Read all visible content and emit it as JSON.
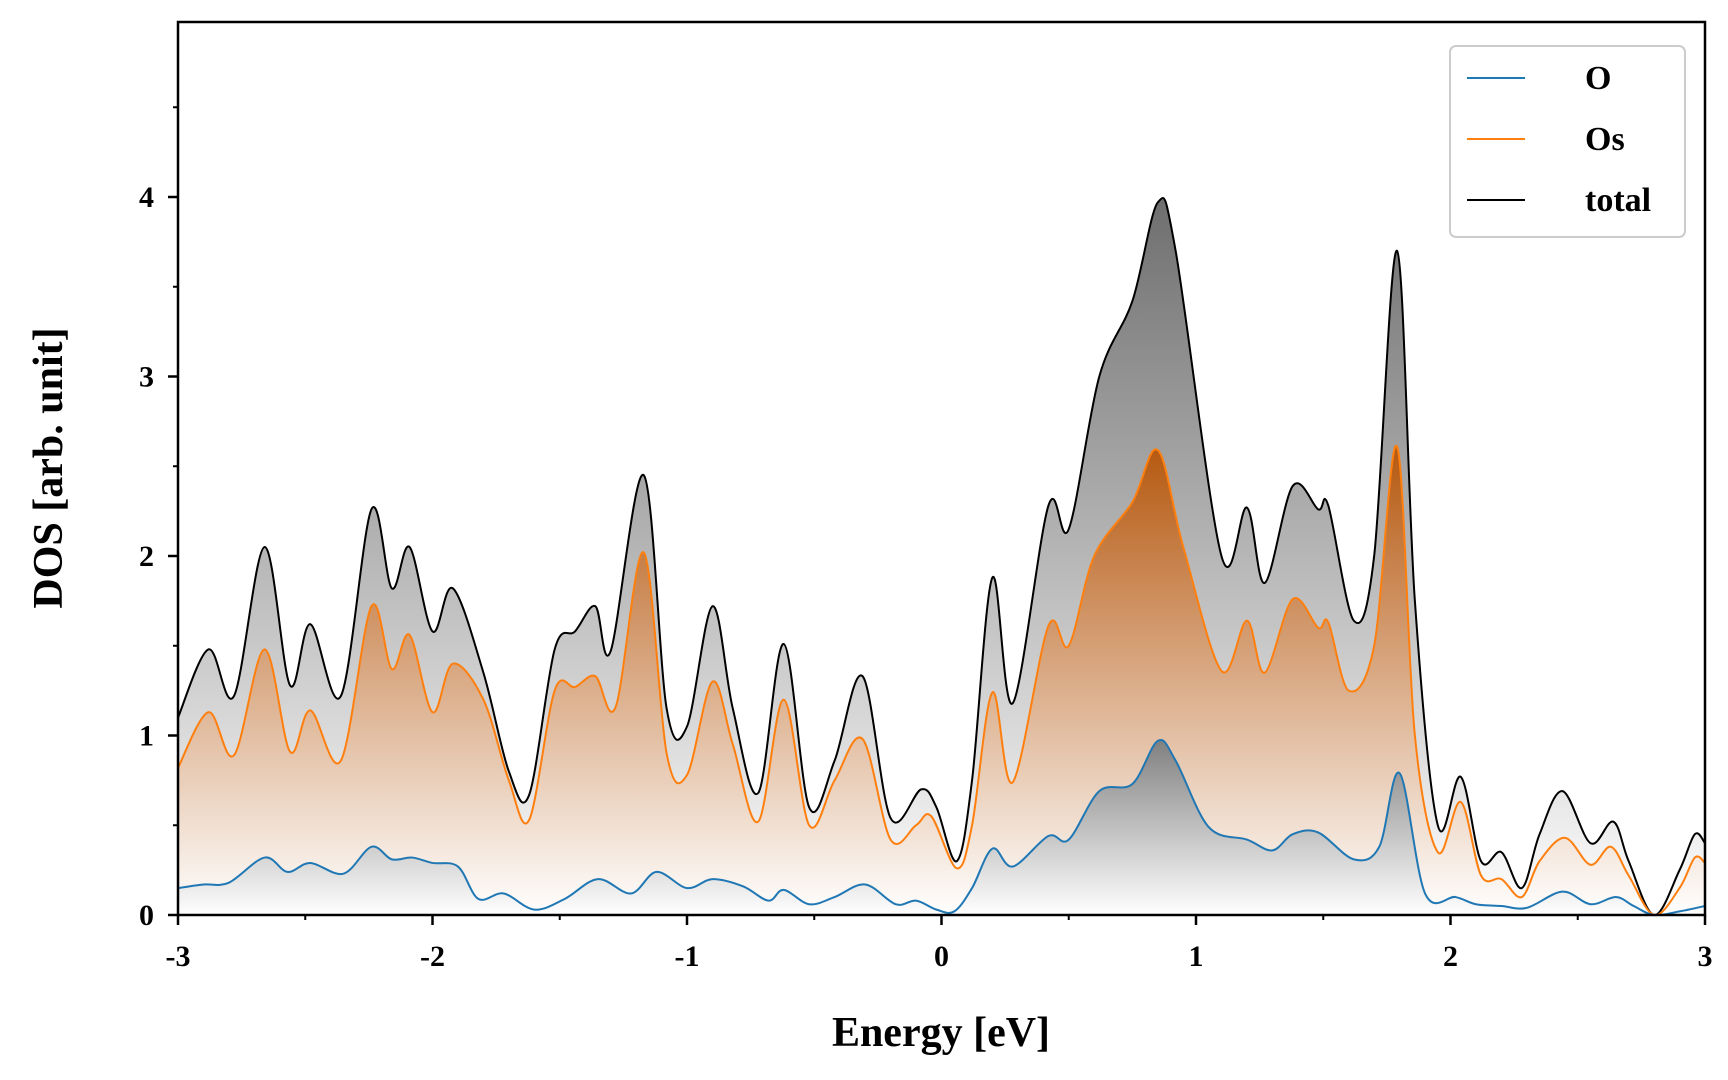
{
  "chart_data": {
    "type": "area",
    "title": "",
    "xlabel": "Energy [eV]",
    "ylabel": "DOS [arb. unit]",
    "xlim": [
      -3,
      3
    ],
    "ylim": [
      0,
      5
    ],
    "xticks": [
      -3,
      -2,
      -1,
      0,
      1,
      2,
      3
    ],
    "xtick_labels": [
      "-3",
      "-2",
      "-1",
      "0",
      "1",
      "2",
      "3"
    ],
    "yticks": [
      0,
      1,
      2,
      3,
      4
    ],
    "ytick_labels": [
      "0",
      "1",
      "2",
      "3",
      "4"
    ],
    "grid": false,
    "legend_position": "top-right",
    "series": [
      {
        "name": "O",
        "color": "#1f77b4",
        "fill_color": "#808080",
        "x": [
          -3.0,
          -2.9,
          -2.8,
          -2.66,
          -2.57,
          -2.48,
          -2.35,
          -2.24,
          -2.16,
          -2.08,
          -2.0,
          -1.9,
          -1.82,
          -1.72,
          -1.6,
          -1.48,
          -1.35,
          -1.22,
          -1.12,
          -1.0,
          -0.9,
          -0.78,
          -0.68,
          -0.62,
          -0.52,
          -0.42,
          -0.3,
          -0.18,
          -0.1,
          -0.02,
          0.05,
          0.12,
          0.2,
          0.28,
          0.42,
          0.5,
          0.62,
          0.75,
          0.85,
          0.92,
          1.05,
          1.2,
          1.3,
          1.38,
          1.48,
          1.62,
          1.72,
          1.8,
          1.9,
          2.02,
          2.1,
          2.2,
          2.3,
          2.44,
          2.55,
          2.65,
          2.72,
          2.8,
          2.9,
          3.0
        ],
        "values": [
          0.15,
          0.17,
          0.18,
          0.32,
          0.24,
          0.29,
          0.23,
          0.38,
          0.31,
          0.32,
          0.29,
          0.27,
          0.09,
          0.12,
          0.03,
          0.09,
          0.2,
          0.12,
          0.24,
          0.15,
          0.2,
          0.16,
          0.08,
          0.14,
          0.06,
          0.1,
          0.17,
          0.06,
          0.08,
          0.03,
          0.02,
          0.15,
          0.37,
          0.27,
          0.44,
          0.42,
          0.69,
          0.73,
          0.97,
          0.86,
          0.49,
          0.42,
          0.36,
          0.45,
          0.46,
          0.31,
          0.38,
          0.79,
          0.12,
          0.1,
          0.06,
          0.05,
          0.04,
          0.13,
          0.06,
          0.1,
          0.05,
          0.0,
          0.02,
          0.05
        ]
      },
      {
        "name": "Os",
        "color": "#ff7f0e",
        "fill_color": "#b5580f",
        "x": [
          -3.0,
          -2.88,
          -2.78,
          -2.66,
          -2.56,
          -2.48,
          -2.36,
          -2.24,
          -2.16,
          -2.09,
          -2.0,
          -1.92,
          -1.8,
          -1.7,
          -1.62,
          -1.52,
          -1.44,
          -1.36,
          -1.28,
          -1.17,
          -1.08,
          -1.0,
          -0.9,
          -0.82,
          -0.72,
          -0.62,
          -0.52,
          -0.42,
          -0.31,
          -0.2,
          -0.1,
          -0.04,
          0.06,
          0.12,
          0.2,
          0.28,
          0.42,
          0.5,
          0.6,
          0.75,
          0.85,
          0.95,
          1.1,
          1.2,
          1.27,
          1.38,
          1.48,
          1.52,
          1.6,
          1.7,
          1.79,
          1.86,
          1.95,
          2.04,
          2.12,
          2.2,
          2.28,
          2.35,
          2.45,
          2.55,
          2.63,
          2.7,
          2.8,
          2.9,
          2.96,
          3.0
        ],
        "values": [
          0.82,
          1.13,
          0.89,
          1.48,
          0.91,
          1.14,
          0.86,
          1.72,
          1.37,
          1.56,
          1.13,
          1.4,
          1.2,
          0.75,
          0.53,
          1.25,
          1.27,
          1.33,
          1.16,
          2.02,
          0.9,
          0.78,
          1.3,
          0.95,
          0.52,
          1.2,
          0.5,
          0.75,
          0.98,
          0.42,
          0.5,
          0.55,
          0.26,
          0.5,
          1.24,
          0.74,
          1.61,
          1.5,
          2.0,
          2.3,
          2.59,
          2.05,
          1.36,
          1.64,
          1.35,
          1.76,
          1.6,
          1.63,
          1.25,
          1.5,
          2.61,
          1.0,
          0.35,
          0.63,
          0.22,
          0.2,
          0.1,
          0.3,
          0.43,
          0.28,
          0.38,
          0.22,
          0.0,
          0.15,
          0.32,
          0.29
        ]
      },
      {
        "name": "total",
        "color": "#000000",
        "fill_color": "#808080",
        "x": [
          -3.0,
          -2.88,
          -2.78,
          -2.66,
          -2.56,
          -2.48,
          -2.36,
          -2.24,
          -2.16,
          -2.09,
          -2.0,
          -1.92,
          -1.8,
          -1.7,
          -1.62,
          -1.52,
          -1.44,
          -1.36,
          -1.3,
          -1.17,
          -1.08,
          -1.0,
          -0.9,
          -0.82,
          -0.72,
          -0.62,
          -0.52,
          -0.42,
          -0.31,
          -0.2,
          -0.08,
          -0.02,
          0.06,
          0.12,
          0.2,
          0.28,
          0.42,
          0.5,
          0.62,
          0.75,
          0.85,
          0.92,
          1.1,
          1.2,
          1.27,
          1.38,
          1.48,
          1.52,
          1.62,
          1.7,
          1.79,
          1.86,
          1.95,
          2.04,
          2.12,
          2.2,
          2.28,
          2.35,
          2.44,
          2.55,
          2.64,
          2.7,
          2.8,
          2.9,
          2.96,
          3.0
        ],
        "values": [
          1.1,
          1.48,
          1.22,
          2.05,
          1.28,
          1.62,
          1.22,
          2.26,
          1.82,
          2.05,
          1.58,
          1.82,
          1.35,
          0.8,
          0.67,
          1.48,
          1.58,
          1.72,
          1.47,
          2.45,
          1.15,
          1.05,
          1.72,
          1.15,
          0.68,
          1.51,
          0.6,
          0.86,
          1.33,
          0.54,
          0.7,
          0.6,
          0.3,
          0.75,
          1.88,
          1.18,
          2.28,
          2.15,
          3.0,
          3.42,
          3.97,
          3.7,
          2.0,
          2.27,
          1.85,
          2.39,
          2.26,
          2.28,
          1.64,
          2.0,
          3.7,
          1.75,
          0.5,
          0.77,
          0.3,
          0.35,
          0.15,
          0.45,
          0.69,
          0.4,
          0.52,
          0.3,
          0.0,
          0.25,
          0.45,
          0.4
        ]
      }
    ]
  }
}
